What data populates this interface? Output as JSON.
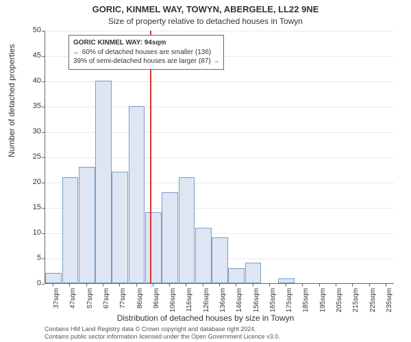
{
  "title": "GORIC, KINMEL WAY, TOWYN, ABERGELE, LL22 9NE",
  "subtitle": "Size of property relative to detached houses in Towyn",
  "ylabel": "Number of detached properties",
  "xlabel": "Distribution of detached houses by size in Towyn",
  "chart": {
    "type": "histogram",
    "background_color": "#ffffff",
    "grid_color": "#e8e8e8",
    "axis_color": "#666666",
    "bar_fill": "#dde6f2",
    "bar_stroke": "#7a9cc6",
    "refline_color": "#d9332e",
    "ylim": [
      0,
      50
    ],
    "ytick_step": 5,
    "yticks": [
      0,
      5,
      10,
      15,
      20,
      25,
      30,
      35,
      40,
      45,
      50
    ],
    "x_categories": [
      "37sqm",
      "47sqm",
      "57sqm",
      "67sqm",
      "77sqm",
      "86sqm",
      "96sqm",
      "106sqm",
      "116sqm",
      "126sqm",
      "136sqm",
      "146sqm",
      "156sqm",
      "165sqm",
      "175sqm",
      "185sqm",
      "195sqm",
      "205sqm",
      "215sqm",
      "225sqm",
      "235sqm"
    ],
    "values": [
      2,
      21,
      23,
      40,
      22,
      35,
      14,
      18,
      21,
      11,
      9,
      3,
      4,
      0,
      1,
      0,
      0,
      0,
      0,
      0,
      0
    ],
    "refline_index": 5.8,
    "title_fontsize": 13,
    "label_fontsize": 12,
    "tick_fontsize": 10
  },
  "annotation": {
    "line1": "GORIC KINMEL WAY: 94sqm",
    "line2": "← 60% of detached houses are smaller (136)",
    "line3": "39% of semi-detached houses are larger (87) →"
  },
  "footer": {
    "line1": "Contains HM Land Registry data © Crown copyright and database right 2024.",
    "line2": "Contains public sector information licensed under the Open Government Licence v3.0."
  }
}
